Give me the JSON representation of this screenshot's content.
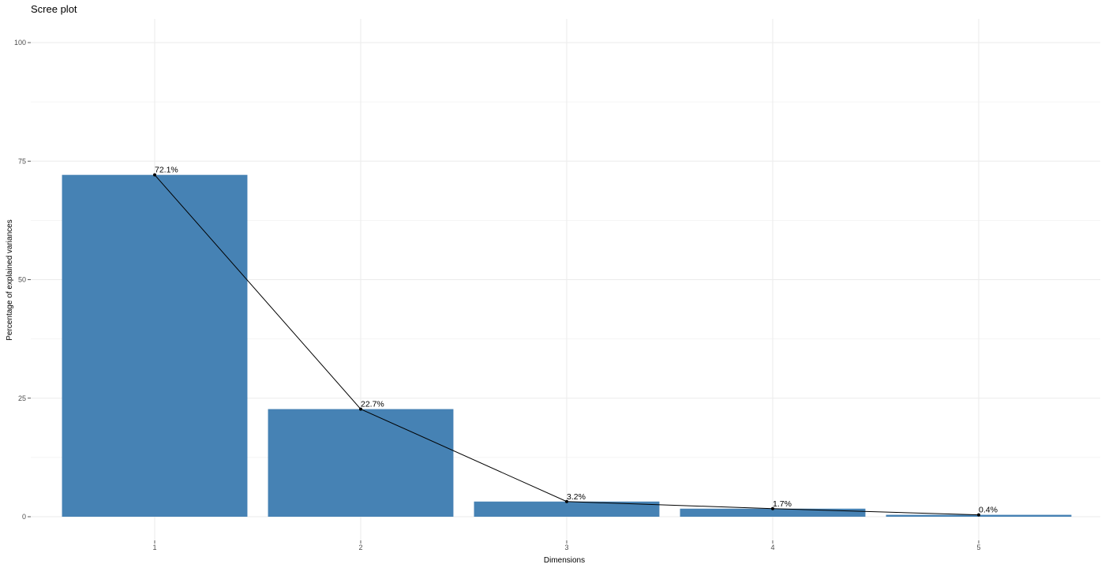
{
  "chart_data": {
    "type": "bar",
    "title": "Scree plot",
    "xlabel": "Dimensions",
    "ylabel": "Percentage of explained variances",
    "categories": [
      "1",
      "2",
      "3",
      "4",
      "5"
    ],
    "values": [
      72.1,
      22.7,
      3.2,
      1.7,
      0.4
    ],
    "labels": [
      "72.1%",
      "22.7%",
      "3.2%",
      "1.7%",
      "0.4%"
    ],
    "ylim": [
      0,
      100
    ],
    "yticks": [
      0,
      25,
      50,
      75,
      100
    ],
    "grid": true,
    "line_overlay": true,
    "bar_color": "#4682b4",
    "line_color": "#000000",
    "grid_color": "#ebebeb"
  }
}
